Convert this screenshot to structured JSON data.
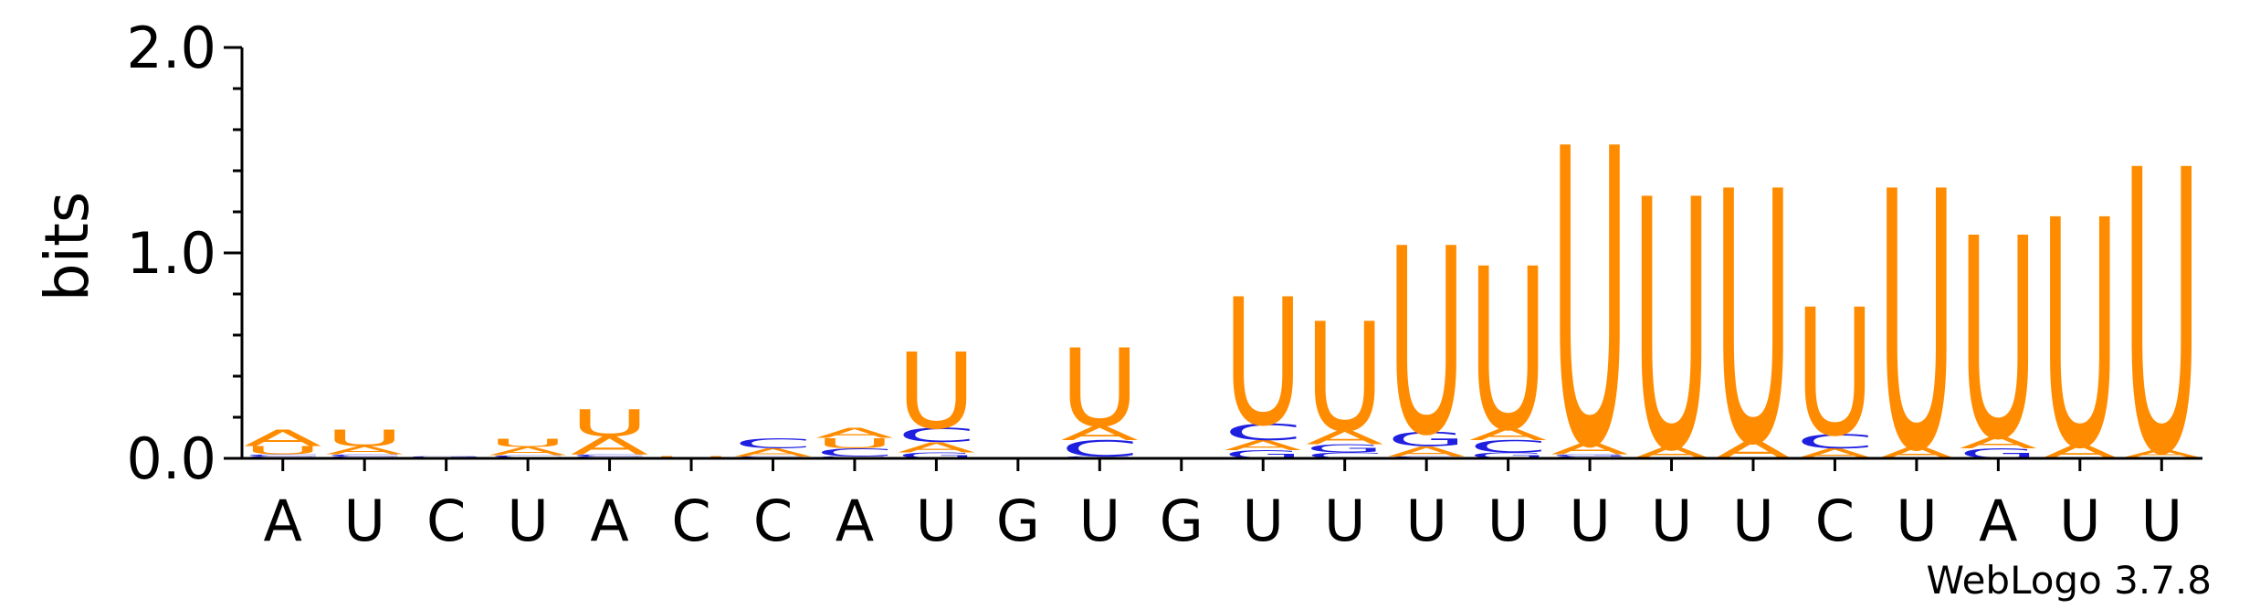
{
  "chart_data": {
    "type": "sequence-logo",
    "ylabel": "bits",
    "ylim": [
      0,
      2.0
    ],
    "yticks": [
      "0.0",
      "1.0",
      "2.0"
    ],
    "credit": "WebLogo 3.7.8",
    "colors": {
      "A": "#ff8c00",
      "U": "#ff8c00",
      "C": "#1f1fe0",
      "G": "#1f1fe0"
    },
    "positions": [
      {
        "label": "A",
        "stack": [
          {
            "base": "G",
            "bits": 0.01
          },
          {
            "base": "C",
            "bits": 0.01
          },
          {
            "base": "U",
            "bits": 0.04
          },
          {
            "base": "A",
            "bits": 0.08
          }
        ]
      },
      {
        "label": "U",
        "stack": [
          {
            "base": "G",
            "bits": 0.01
          },
          {
            "base": "C",
            "bits": 0.01
          },
          {
            "base": "A",
            "bits": 0.04
          },
          {
            "base": "U",
            "bits": 0.08
          }
        ]
      },
      {
        "label": "C",
        "stack": [
          {
            "base": "A",
            "bits": 0.005
          },
          {
            "base": "G",
            "bits": 0.005
          }
        ]
      },
      {
        "label": "U",
        "stack": [
          {
            "base": "G",
            "bits": 0.005
          },
          {
            "base": "C",
            "bits": 0.01
          },
          {
            "base": "A",
            "bits": 0.04
          },
          {
            "base": "U",
            "bits": 0.04
          }
        ]
      },
      {
        "label": "A",
        "stack": [
          {
            "base": "G",
            "bits": 0.01
          },
          {
            "base": "C",
            "bits": 0.01
          },
          {
            "base": "A",
            "bits": 0.09
          },
          {
            "base": "U",
            "bits": 0.13
          }
        ]
      },
      {
        "label": "C",
        "stack": [
          {
            "base": "A",
            "bits": 0.005
          },
          {
            "base": "U",
            "bits": 0.005
          }
        ]
      },
      {
        "label": "C",
        "stack": [
          {
            "base": "G",
            "bits": 0.01
          },
          {
            "base": "A",
            "bits": 0.04
          },
          {
            "base": "C",
            "bits": 0.05
          }
        ]
      },
      {
        "label": "A",
        "stack": [
          {
            "base": "G",
            "bits": 0.01
          },
          {
            "base": "C",
            "bits": 0.04
          },
          {
            "base": "U",
            "bits": 0.05
          },
          {
            "base": "A",
            "bits": 0.05
          }
        ]
      },
      {
        "label": "U",
        "stack": [
          {
            "base": "G",
            "bits": 0.03
          },
          {
            "base": "A",
            "bits": 0.05
          },
          {
            "base": "C",
            "bits": 0.07
          },
          {
            "base": "U",
            "bits": 0.37
          }
        ]
      },
      {
        "label": "G",
        "stack": []
      },
      {
        "label": "U",
        "stack": [
          {
            "base": "G",
            "bits": 0.01
          },
          {
            "base": "C",
            "bits": 0.08
          },
          {
            "base": "A",
            "bits": 0.07
          },
          {
            "base": "U",
            "bits": 0.38
          }
        ]
      },
      {
        "label": "G",
        "stack": []
      },
      {
        "label": "U",
        "stack": [
          {
            "base": "G",
            "bits": 0.04
          },
          {
            "base": "A",
            "bits": 0.05
          },
          {
            "base": "C",
            "bits": 0.08
          },
          {
            "base": "U",
            "bits": 0.62
          }
        ]
      },
      {
        "label": "U",
        "stack": [
          {
            "base": "C",
            "bits": 0.03
          },
          {
            "base": "G",
            "bits": 0.04
          },
          {
            "base": "A",
            "bits": 0.07
          },
          {
            "base": "U",
            "bits": 0.53
          }
        ]
      },
      {
        "label": "U",
        "stack": [
          {
            "base": "C",
            "bits": 0.01
          },
          {
            "base": "A",
            "bits": 0.05
          },
          {
            "base": "G",
            "bits": 0.07
          },
          {
            "base": "U",
            "bits": 0.91
          }
        ]
      },
      {
        "label": "U",
        "stack": [
          {
            "base": "G",
            "bits": 0.03
          },
          {
            "base": "C",
            "bits": 0.06
          },
          {
            "base": "A",
            "bits": 0.06
          },
          {
            "base": "U",
            "bits": 0.79
          }
        ]
      },
      {
        "label": "U",
        "stack": [
          {
            "base": "C",
            "bits": 0.01
          },
          {
            "base": "G",
            "bits": 0.01
          },
          {
            "base": "A",
            "bits": 0.06
          },
          {
            "base": "U",
            "bits": 1.45
          }
        ]
      },
      {
        "label": "U",
        "stack": [
          {
            "base": "A",
            "bits": 0.06
          },
          {
            "base": "U",
            "bits": 1.22
          }
        ]
      },
      {
        "label": "U",
        "stack": [
          {
            "base": "A",
            "bits": 0.09
          },
          {
            "base": "U",
            "bits": 1.23
          }
        ]
      },
      {
        "label": "C",
        "stack": [
          {
            "base": "A",
            "bits": 0.05
          },
          {
            "base": "C",
            "bits": 0.07
          },
          {
            "base": "U",
            "bits": 0.62
          }
        ]
      },
      {
        "label": "U",
        "stack": [
          {
            "base": "A",
            "bits": 0.06
          },
          {
            "base": "U",
            "bits": 1.26
          }
        ]
      },
      {
        "label": "A",
        "stack": [
          {
            "base": "G",
            "bits": 0.05
          },
          {
            "base": "A",
            "bits": 0.06
          },
          {
            "base": "U",
            "bits": 0.98
          }
        ]
      },
      {
        "label": "U",
        "stack": [
          {
            "base": "A",
            "bits": 0.07
          },
          {
            "base": "U",
            "bits": 1.11
          }
        ]
      },
      {
        "label": "U",
        "stack": [
          {
            "base": "C",
            "bits": 0.005
          },
          {
            "base": "A",
            "bits": 0.04
          },
          {
            "base": "U",
            "bits": 1.38
          }
        ]
      }
    ]
  }
}
